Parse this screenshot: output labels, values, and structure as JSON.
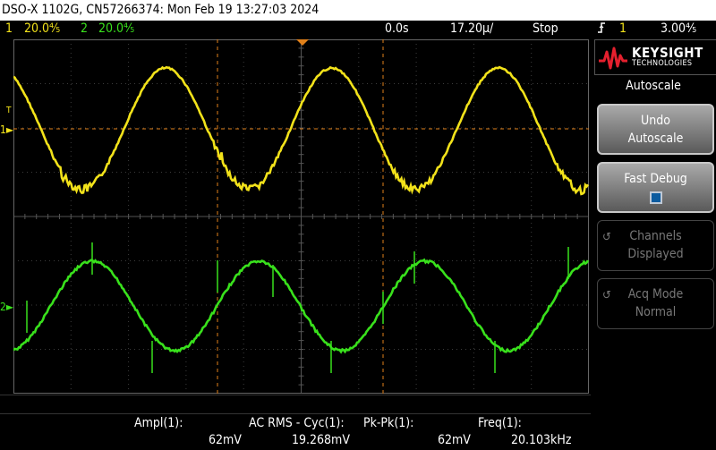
{
  "title_bar": {
    "text": "DSO-X 1102G, CN57266374: Mon Feb 19 13:27:03 2024"
  },
  "status": {
    "ch1_num": "1",
    "ch1_scale": "20.0⅘",
    "ch2_num": "2",
    "ch2_scale": "20.0⅘",
    "time_pos": "0.0s",
    "time_scale": "17.20µ/",
    "run_state": "Stop",
    "trig_icon": "trigger-rising-edge",
    "trig_ch": "1",
    "trig_level": "3.00⅘"
  },
  "markers": {
    "ch1": "1",
    "ch2": "2",
    "trig": "T"
  },
  "measurements": [
    {
      "label": "Ampl(1):",
      "value": "62mV"
    },
    {
      "label": "AC RMS - Cyc(1):",
      "value": "19.268mV"
    },
    {
      "label": "Pk-Pk(1):",
      "value": "62mV"
    },
    {
      "label": "Freq(1):",
      "value": "20.103kHz"
    }
  ],
  "brand": {
    "name": "KEYSIGHT",
    "sub": "TECHNOLOGIES"
  },
  "softkeys": {
    "title": "Autoscale",
    "undo_line1": "Undo",
    "undo_line2": "Autoscale",
    "fast_debug": "Fast Debug",
    "channels_line1": "Channels",
    "channels_line2": "Displayed",
    "acq_line1": "Acq Mode",
    "acq_line2": "Normal"
  },
  "colors": {
    "ch1": "#f2e21a",
    "ch2": "#39e11c",
    "cursor": "#e0801a",
    "grid": "#3c3c3c"
  }
}
